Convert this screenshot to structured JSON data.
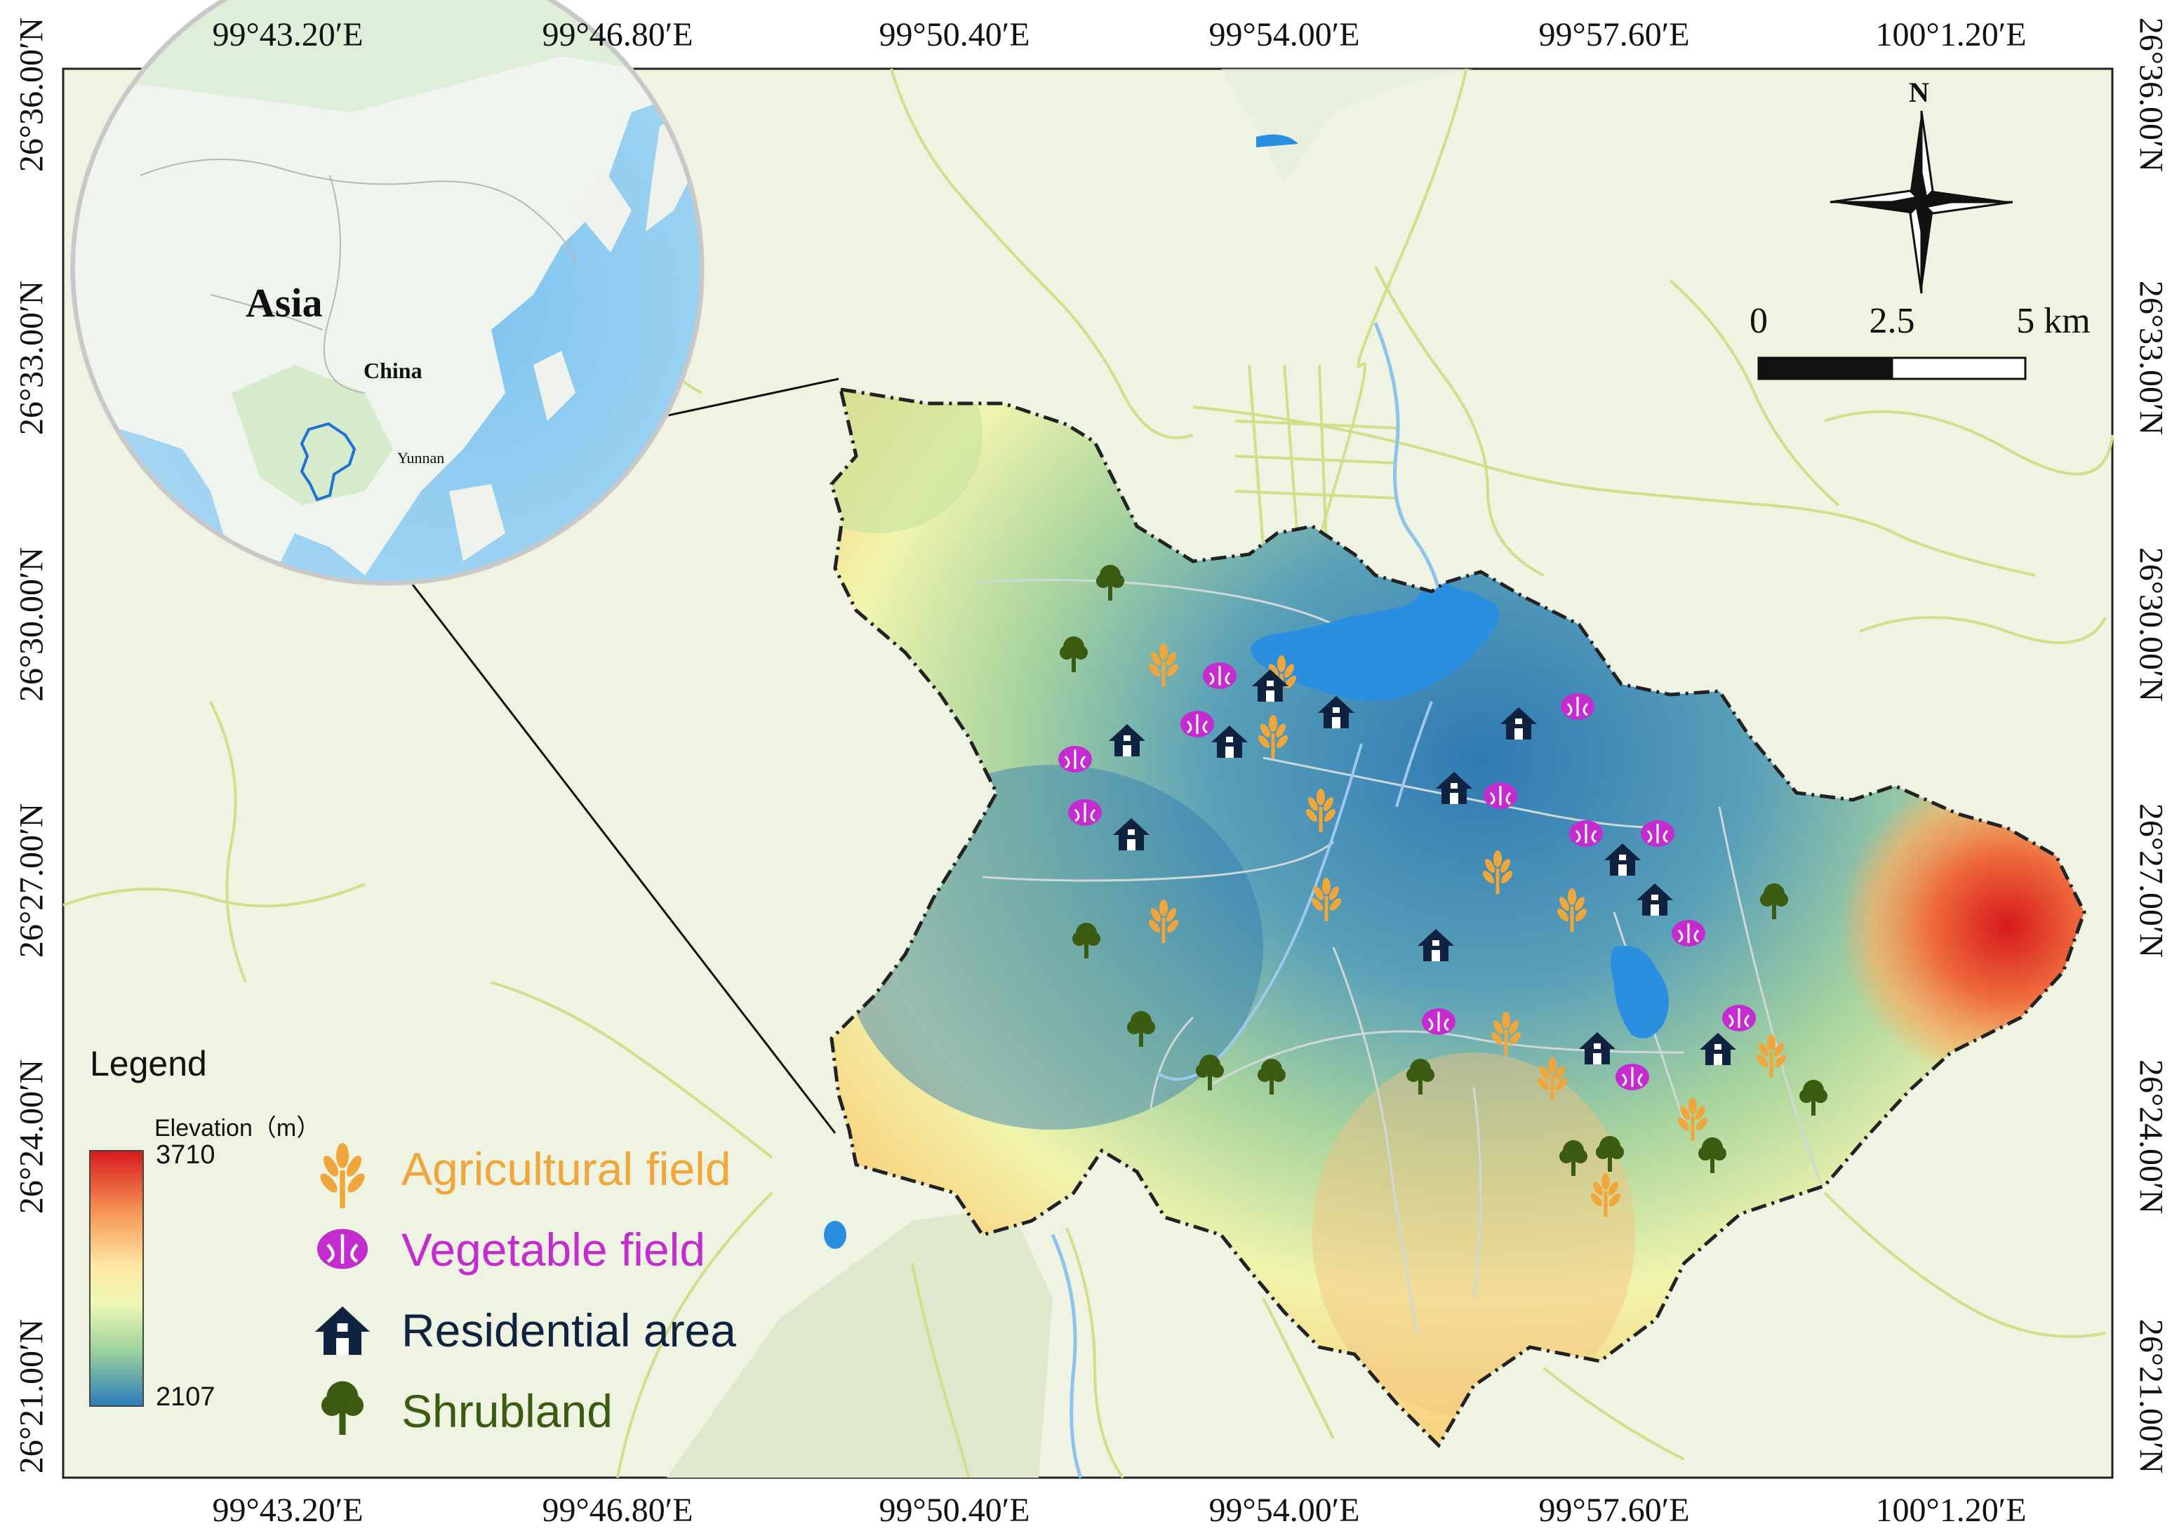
{
  "axes": {
    "top_longitudes": [
      "99°43.20′E",
      "99°46.80′E",
      "99°50.40′E",
      "99°54.00′E",
      "99°57.60′E",
      "100°1.20′E"
    ],
    "bottom_longitudes": [
      "99°43.20′E",
      "99°46.80′E",
      "99°50.40′E",
      "99°54.00′E",
      "99°57.60′E",
      "100°1.20′E"
    ],
    "left_latitudes": [
      "26°36.00′N",
      "26°33.00′N",
      "26°30.00′N",
      "26°27.00′N",
      "26°24.00′N",
      "26°21.00′N"
    ],
    "right_latitudes": [
      "26°36.00′N",
      "26°33.00′N",
      "26°30.00′N",
      "26°27.00′N",
      "26°24.00′N",
      "26°21.00′N"
    ]
  },
  "inset": {
    "continent_label": "Asia",
    "country_label": "China",
    "province_label": "Yunnan"
  },
  "north_arrow": {
    "label": "N"
  },
  "scale_bar": {
    "labels": [
      "0",
      "2.5",
      "5 km"
    ]
  },
  "legend": {
    "title": "Legend",
    "elevation_title": "Elevation（m）",
    "elevation_max": "3710",
    "elevation_min": "2107",
    "items": [
      {
        "label": "Agricultural field",
        "icon": "wheat-icon",
        "color": "#f0a63a"
      },
      {
        "label": "Vegetable field",
        "icon": "cabbage-icon",
        "color": "#c42ccf"
      },
      {
        "label": "Residential area",
        "icon": "house-icon",
        "color": "#0f2340"
      },
      {
        "label": "Shrubland",
        "icon": "tree-icon",
        "color": "#3a5b10"
      }
    ]
  },
  "colors": {
    "elevation_low": "#2f7ab4",
    "elevation_mid": "#f2f4a8",
    "elevation_high": "#d7191c",
    "water": "#2a8fe0",
    "basemap": "#eef3e2",
    "roads": "#d2df8a"
  }
}
